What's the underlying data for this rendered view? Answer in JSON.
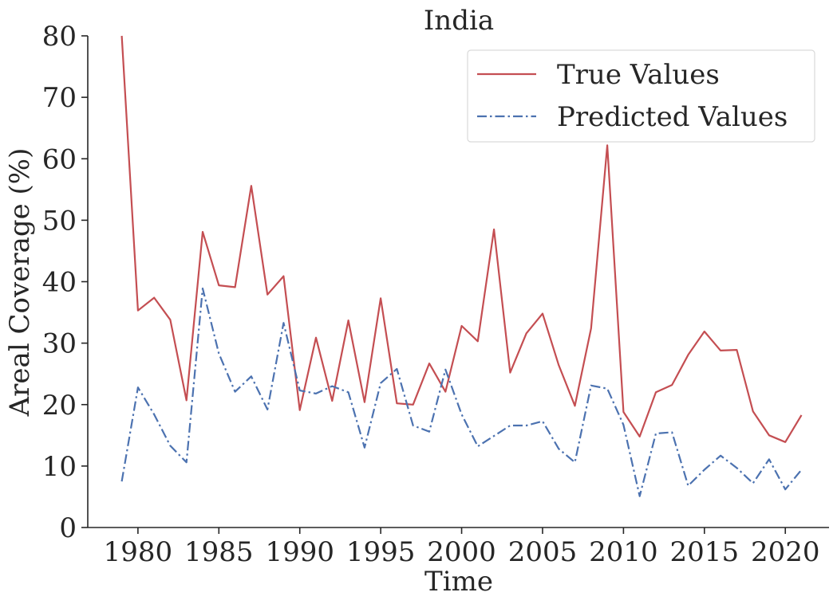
{
  "chart_data": {
    "type": "line",
    "title": "India",
    "xlabel": "Time",
    "ylabel": "Areal Coverage (%)",
    "xlim": [
      1976.9,
      2022.7
    ],
    "ylim": [
      0,
      80
    ],
    "xticks": [
      1980,
      1985,
      1990,
      1995,
      2000,
      2005,
      2010,
      2015,
      2020
    ],
    "yticks": [
      0,
      10,
      20,
      30,
      40,
      50,
      60,
      70,
      80
    ],
    "grid": false,
    "legend_position": "top-right",
    "x": [
      1979,
      1980,
      1981,
      1982,
      1983,
      1984,
      1985,
      1986,
      1987,
      1988,
      1989,
      1990,
      1991,
      1992,
      1993,
      1994,
      1995,
      1996,
      1997,
      1998,
      1999,
      2000,
      2001,
      2002,
      2003,
      2004,
      2005,
      2006,
      2007,
      2008,
      2009,
      2010,
      2011,
      2012,
      2013,
      2014,
      2015,
      2016,
      2017,
      2018,
      2019,
      2020,
      2021
    ],
    "series": [
      {
        "name": "True Values",
        "color": "#c44e52",
        "dash": "solid",
        "values": [
          80.0,
          35.3,
          37.4,
          33.8,
          20.7,
          48.1,
          39.4,
          39.1,
          55.6,
          37.9,
          40.9,
          19.1,
          30.9,
          20.6,
          33.7,
          20.4,
          37.3,
          20.2,
          20.0,
          26.7,
          22.1,
          32.8,
          30.3,
          48.5,
          25.2,
          31.6,
          34.8,
          26.4,
          19.8,
          32.4,
          62.2,
          18.8,
          14.8,
          22.0,
          23.2,
          28.1,
          31.9,
          28.8,
          28.9,
          18.9,
          15.0,
          13.9,
          18.3
        ]
      },
      {
        "name": "Predicted Values",
        "color": "#4c72b0",
        "dash": "dashdot",
        "values": [
          7.5,
          22.8,
          18.4,
          13.3,
          10.6,
          38.9,
          28.3,
          22.1,
          24.6,
          19.2,
          33.3,
          22.3,
          21.8,
          23.0,
          22.0,
          13.0,
          23.5,
          25.8,
          16.6,
          15.6,
          25.7,
          18.4,
          13.2,
          14.9,
          16.6,
          16.6,
          17.3,
          12.8,
          10.6,
          23.1,
          22.6,
          16.7,
          5.1,
          15.3,
          15.5,
          6.8,
          9.4,
          11.7,
          9.7,
          7.2,
          11.1,
          6.2,
          9.4
        ]
      }
    ]
  }
}
